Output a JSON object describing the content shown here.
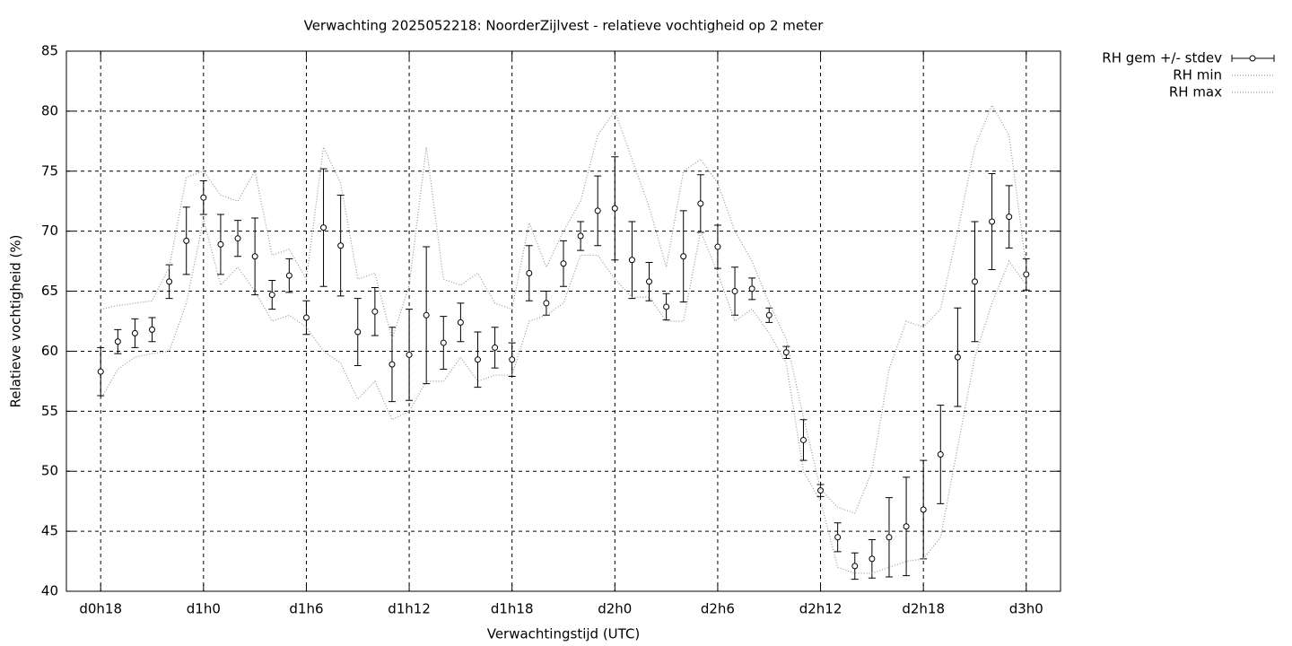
{
  "chart_data": {
    "type": "errorbar-line",
    "title": "Verwachting 2025052218: NoorderZijlvest - relatieve vochtigheid op 2 meter",
    "x_label": "Verwachtingstijd (UTC)",
    "y_label": "Relatieve vochtigheid (%)",
    "x": [
      18,
      19,
      20,
      21,
      22,
      23,
      24,
      25,
      26,
      27,
      28,
      29,
      30,
      31,
      32,
      33,
      34,
      35,
      36,
      37,
      38,
      39,
      40,
      41,
      42,
      43,
      44,
      45,
      46,
      47,
      48,
      49,
      50,
      51,
      52,
      53,
      54,
      55,
      56,
      57,
      58,
      59,
      60,
      61,
      62,
      63,
      64,
      65,
      66,
      67,
      68,
      69,
      70,
      71,
      72
    ],
    "series": [
      {
        "name": "RH gem +/- stdev",
        "color": "#000000",
        "style": "errorbars",
        "values": [
          58.3,
          60.8,
          61.5,
          61.8,
          65.8,
          69.2,
          72.8,
          68.9,
          69.4,
          67.9,
          64.7,
          66.3,
          62.8,
          70.3,
          68.8,
          61.6,
          63.3,
          58.9,
          59.7,
          63.0,
          60.7,
          62.4,
          59.3,
          60.3,
          59.3,
          66.5,
          64.0,
          67.3,
          69.6,
          71.7,
          71.9,
          67.6,
          65.8,
          63.7,
          67.9,
          72.3,
          68.7,
          65.0,
          65.2,
          63.0,
          59.9,
          52.6,
          48.4,
          44.5,
          42.1,
          42.7,
          44.5,
          45.4,
          46.8,
          51.4,
          59.5,
          65.8,
          70.8,
          71.2,
          66.4
        ],
        "errors": [
          2.0,
          1.0,
          1.2,
          1.0,
          1.4,
          2.8,
          1.4,
          2.5,
          1.5,
          3.2,
          1.2,
          1.4,
          1.4,
          4.9,
          4.2,
          2.8,
          2.0,
          3.1,
          3.8,
          5.7,
          2.2,
          1.6,
          2.3,
          1.7,
          1.4,
          2.3,
          1.0,
          1.9,
          1.2,
          2.9,
          4.3,
          3.2,
          1.6,
          1.1,
          3.8,
          2.4,
          1.8,
          2.0,
          0.9,
          0.6,
          0.5,
          1.7,
          0.5,
          1.2,
          1.1,
          1.6,
          3.3,
          4.1,
          4.1,
          4.1,
          4.1,
          5.0,
          4.0,
          2.6,
          1.3
        ]
      },
      {
        "name": "RH min",
        "color": "#999999",
        "style": "dotted",
        "values": [
          56,
          58.5,
          59.5,
          59.8,
          60,
          64,
          71,
          65.5,
          67,
          65,
          62.5,
          63,
          62,
          60,
          59,
          56,
          57.5,
          54.3,
          55,
          57.5,
          57.5,
          59.5,
          57.5,
          58,
          58,
          62.5,
          63,
          64,
          68,
          68,
          66,
          64.5,
          64.5,
          62.5,
          62.5,
          70,
          66.5,
          62.5,
          63.5,
          61.5,
          59,
          50,
          47.5,
          42,
          41.5,
          41.5,
          42,
          42.5,
          42.7,
          44.5,
          52,
          59.5,
          64,
          67.5,
          65.5
        ]
      },
      {
        "name": "RH max",
        "color": "#999999",
        "style": "dotted",
        "values": [
          63.5,
          63.8,
          64,
          64.2,
          67,
          74.5,
          75,
          73,
          72.5,
          75,
          68,
          68.5,
          66,
          77,
          74,
          66,
          66.5,
          61,
          65.5,
          77,
          66,
          65.5,
          66.5,
          64,
          63.5,
          70.7,
          67,
          70,
          72.5,
          78,
          80,
          76,
          72,
          67,
          75,
          76,
          74,
          70,
          67.5,
          64,
          61,
          54.5,
          48.5,
          47,
          46.5,
          50,
          58.5,
          62.5,
          62,
          63.5,
          70,
          77,
          80.5,
          78,
          67
        ]
      }
    ],
    "xlim": [
      16,
      74
    ],
    "xticks": [
      {
        "value": 18,
        "label": "d0h18"
      },
      {
        "value": 24,
        "label": "d1h0"
      },
      {
        "value": 30,
        "label": "d1h6"
      },
      {
        "value": 36,
        "label": "d1h12"
      },
      {
        "value": 42,
        "label": "d1h18"
      },
      {
        "value": 48,
        "label": "d2h0"
      },
      {
        "value": 54,
        "label": "d2h6"
      },
      {
        "value": 60,
        "label": "d2h12"
      },
      {
        "value": 66,
        "label": "d2h18"
      },
      {
        "value": 72,
        "label": "d3h0"
      }
    ],
    "ylim": [
      40,
      85
    ],
    "yticks": [
      40,
      45,
      50,
      55,
      60,
      65,
      70,
      75,
      80,
      85
    ],
    "grid": true,
    "legend": "outside-top-right"
  }
}
